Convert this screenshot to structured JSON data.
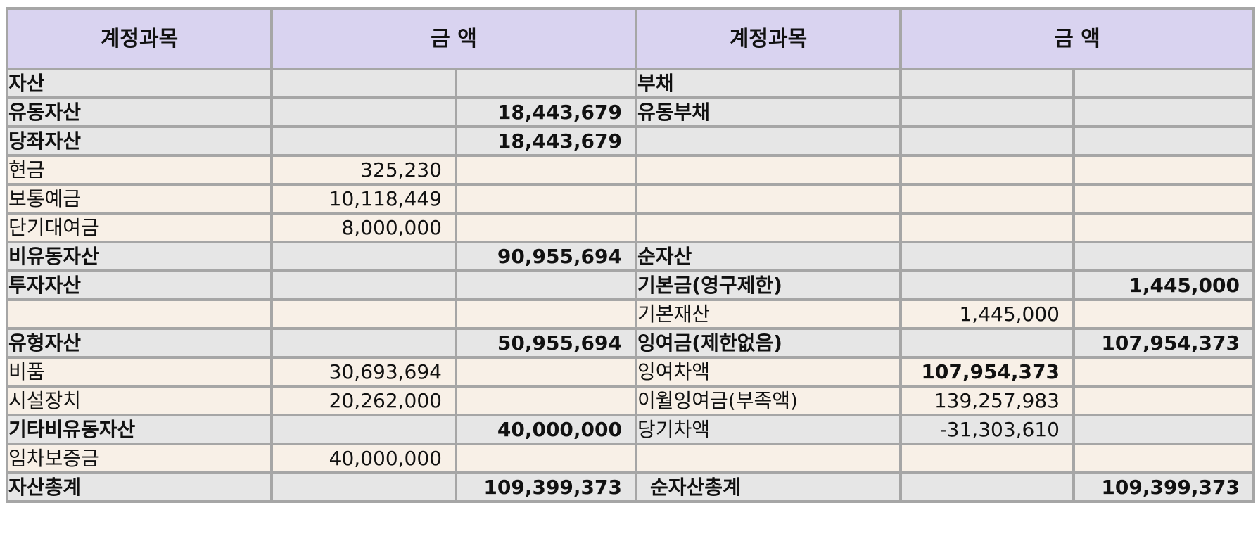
{
  "header": {
    "account_left": "계정과목",
    "amount_left": "금  액",
    "account_right": "계정과목",
    "amount_right": "금  액"
  },
  "rows": [
    {
      "style": "gray",
      "l_label": "자산",
      "l_sub": "",
      "l_tot": "",
      "r_label": "부채",
      "r_sub": "",
      "r_tot": ""
    },
    {
      "style": "gray",
      "l_label": "유동자산",
      "l_sub": "",
      "l_tot": "18,443,679",
      "r_label": "유동부채",
      "r_sub": "",
      "r_tot": ""
    },
    {
      "style": "gray",
      "l_label": "당좌자산",
      "l_sub": "",
      "l_tot": "18,443,679",
      "r_label": "",
      "r_sub": "",
      "r_tot": ""
    },
    {
      "style": "cream",
      "l_label": "현금",
      "l_sub": "325,230",
      "l_tot": "",
      "r_label": "",
      "r_sub": "",
      "r_tot": ""
    },
    {
      "style": "cream",
      "l_label": "보통예금",
      "l_sub": "10,118,449",
      "l_tot": "",
      "r_label": "",
      "r_sub": "",
      "r_tot": ""
    },
    {
      "style": "cream",
      "l_label": "단기대여금",
      "l_sub": "8,000,000",
      "l_tot": "",
      "r_label": "",
      "r_sub": "",
      "r_tot": ""
    },
    {
      "style": "gray",
      "l_label": "비유동자산",
      "l_sub": "",
      "l_tot": "90,955,694",
      "r_label": "순자산",
      "r_sub": "",
      "r_tot": ""
    },
    {
      "style": "gray",
      "l_label": "투자자산",
      "l_sub": "",
      "l_tot": "",
      "r_label": "기본금(영구제한)",
      "r_sub": "",
      "r_tot": "1,445,000"
    },
    {
      "style": "cream",
      "l_label": "",
      "l_sub": "",
      "l_tot": "",
      "r_label": "기본재산",
      "r_sub": "1,445,000",
      "r_tot": ""
    },
    {
      "style": "gray",
      "l_label": "유형자산",
      "l_sub": "",
      "l_tot": "50,955,694",
      "r_label": "잉여금(제한없음)",
      "r_sub": "",
      "r_tot": "107,954,373"
    },
    {
      "style": "cream",
      "l_label": "비품",
      "l_sub": "30,693,694",
      "l_tot": "",
      "r_label": "잉여차액",
      "r_sub": "107,954,373",
      "r_tot": ""
    },
    {
      "style": "cream",
      "l_label": "시설장치",
      "l_sub": "20,262,000",
      "l_tot": "",
      "r_label": "이월잉여금(부족액)",
      "r_sub": "139,257,983",
      "r_tot": ""
    },
    {
      "style": "gray",
      "l_label": "기타비유동자산",
      "l_sub": "",
      "l_tot": "40,000,000",
      "r_label": "당기차액",
      "r_sub": "-31,303,610",
      "r_tot": ""
    },
    {
      "style": "cream",
      "l_label": "임차보증금",
      "l_sub": "40,000,000",
      "l_tot": "",
      "r_label": "",
      "r_sub": "",
      "r_tot": ""
    },
    {
      "style": "gray",
      "l_label": "자산총계",
      "l_sub": "",
      "l_tot": "109,399,373",
      "r_label": "순자산총계",
      "r_sub": "",
      "r_tot": "109,399,373"
    }
  ],
  "colors": {
    "header_bg": "#d9d3f0",
    "gray_row_bg": "#e6e6e6",
    "cream_row_bg": "#f8f0e7",
    "border": "#a6a6a6"
  }
}
